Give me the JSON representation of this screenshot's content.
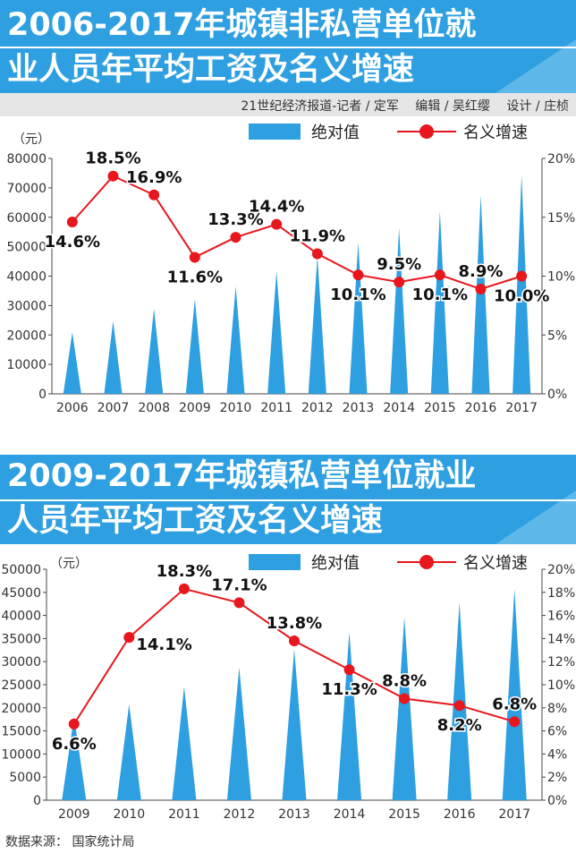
{
  "credit": "21世纪经济报道-记者 / 定军　 编辑 / 吴红缨　 设计 / 庄桢",
  "source": "数据来源： 国家统计局",
  "chart_data": [
    {
      "type": "bar+line",
      "title_line1": "2006-2017年城镇非私营单位就",
      "title_line2": "业人员年平均工资及名义增速",
      "unit": "（元）",
      "legend": {
        "bar": "绝对值",
        "line": "名义增速"
      },
      "categories": [
        "2006",
        "2007",
        "2008",
        "2009",
        "2010",
        "2011",
        "2012",
        "2013",
        "2014",
        "2015",
        "2016",
        "2017"
      ],
      "values": [
        20856,
        24721,
        28898,
        32244,
        36539,
        41799,
        46769,
        51483,
        56360,
        62029,
        67569,
        74318
      ],
      "growth": [
        14.6,
        18.5,
        16.9,
        11.6,
        13.3,
        14.4,
        11.9,
        10.1,
        9.5,
        10.1,
        8.9,
        10.0
      ],
      "growth_labels": [
        "14.6%",
        "18.5%",
        "16.9%",
        "11.6%",
        "13.3%",
        "14.4%",
        "11.9%",
        "10.1%",
        "9.5%",
        "10.1%",
        "8.9%",
        "10.0%"
      ],
      "label_pos": [
        "below",
        "above",
        "above",
        "below",
        "above",
        "above",
        "above",
        "below",
        "above",
        "below",
        "above",
        "below"
      ],
      "ylim": [
        0,
        80000
      ],
      "yticks": [
        0,
        10000,
        20000,
        30000,
        40000,
        50000,
        60000,
        70000,
        80000
      ],
      "y2lim": [
        0,
        20
      ],
      "y2ticks": [
        "0%",
        "5%",
        "10%",
        "15%",
        "20%"
      ],
      "colors": {
        "bar": "#2e9fe0",
        "line": "#e8161d"
      }
    },
    {
      "type": "bar+line",
      "title_line1": "2009-2017年城镇私营单位就业",
      "title_line2": "人员年平均工资及名义增速",
      "unit": "（元）",
      "legend": {
        "bar": "绝对值",
        "line": "名义增速"
      },
      "categories": [
        "2009",
        "2010",
        "2011",
        "2012",
        "2013",
        "2014",
        "2015",
        "2016",
        "2017"
      ],
      "values": [
        18199,
        20759,
        24556,
        28752,
        32706,
        36390,
        39589,
        42833,
        45761
      ],
      "growth": [
        6.6,
        14.1,
        18.3,
        17.1,
        13.8,
        11.3,
        8.8,
        8.2,
        6.8
      ],
      "growth_labels": [
        "6.6%",
        "14.1%",
        "18.3%",
        "17.1%",
        "13.8%",
        "11.3%",
        "8.8%",
        "8.2%",
        "6.8%"
      ],
      "label_pos": [
        "below",
        "right",
        "above",
        "above",
        "above",
        "below",
        "above",
        "below",
        "above"
      ],
      "ylim": [
        0,
        50000
      ],
      "yticks": [
        0,
        5000,
        10000,
        15000,
        20000,
        25000,
        30000,
        35000,
        40000,
        45000,
        50000
      ],
      "y2lim": [
        0,
        20
      ],
      "y2ticks": [
        "0%",
        "2%",
        "4%",
        "6%",
        "8%",
        "10%",
        "12%",
        "14%",
        "16%",
        "18%",
        "20%"
      ],
      "colors": {
        "bar": "#2e9fe0",
        "line": "#e8161d"
      }
    }
  ]
}
